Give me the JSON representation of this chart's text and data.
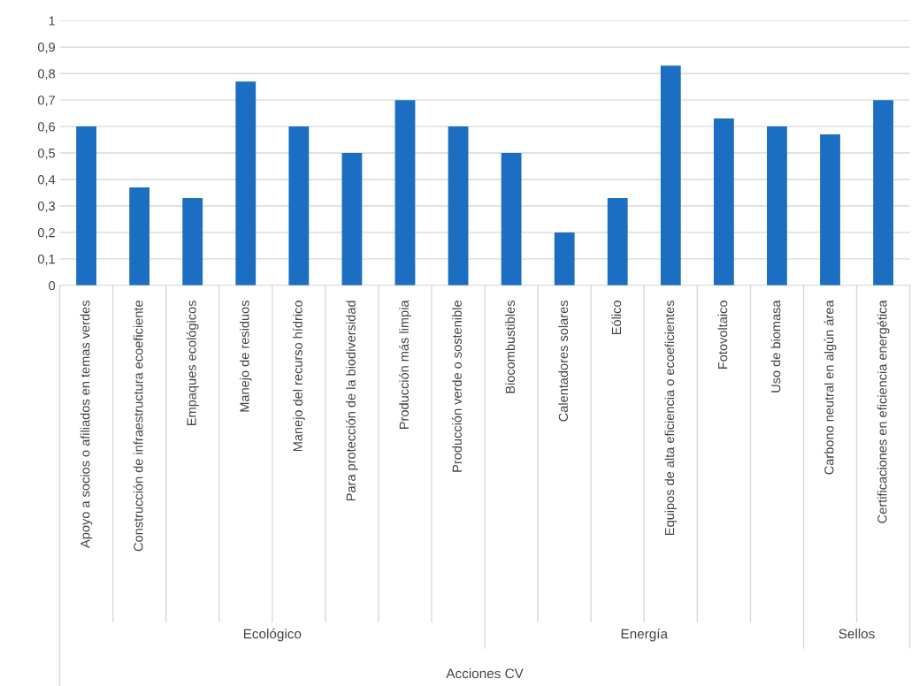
{
  "chart_data": {
    "type": "bar",
    "categories": [
      "Apoyo a socios o afiliados en temas verdes",
      "Construcción de infraestructura ecoeficiente",
      "Empaques ecológicos",
      "Manejo de residuos",
      "Manejo del recurso hídrico",
      "Para protección de la biodiversidad",
      "Producción más limpia",
      "Producción verde o sostenible",
      "Biocombustibles",
      "Calentadores solares",
      "Eólico",
      "Equipos de alta eficiencia o ecoeficientes",
      "Fotovoltaico",
      "Uso de biomasa",
      "Carbono neutral en algún área",
      "Certificaciones en eficiencia energética"
    ],
    "values": [
      0.6,
      0.37,
      0.33,
      0.77,
      0.6,
      0.5,
      0.7,
      0.6,
      0.5,
      0.2,
      0.33,
      0.83,
      0.63,
      0.6,
      0.57,
      0.7
    ],
    "color": "#1b6ec2",
    "annotations": [
      "Ecológico",
      "Energía",
      "Sellos",
      "Acciones CV"
    ],
    "ylim": [
      0,
      1
    ],
    "yticks": [
      0,
      {
        "value": 0.1,
        "label": "0,1"
      },
      {
        "value": 0.2,
        "label": "0,2"
      },
      {
        "value": 0.3,
        "label": "0,3"
      },
      {
        "value": 0.4,
        "label": "0,4"
      },
      {
        "value": 0.5,
        "label": "0,5"
      },
      {
        "value": 0.6,
        "label": "0,6"
      },
      {
        "value": 0.7,
        "label": "0,7"
      },
      {
        "value": 0.8,
        "label": "0,8"
      },
      {
        "value": 0.9,
        "label": "0,9"
      },
      1
    ],
    "grid": "y",
    "legend": false
  }
}
